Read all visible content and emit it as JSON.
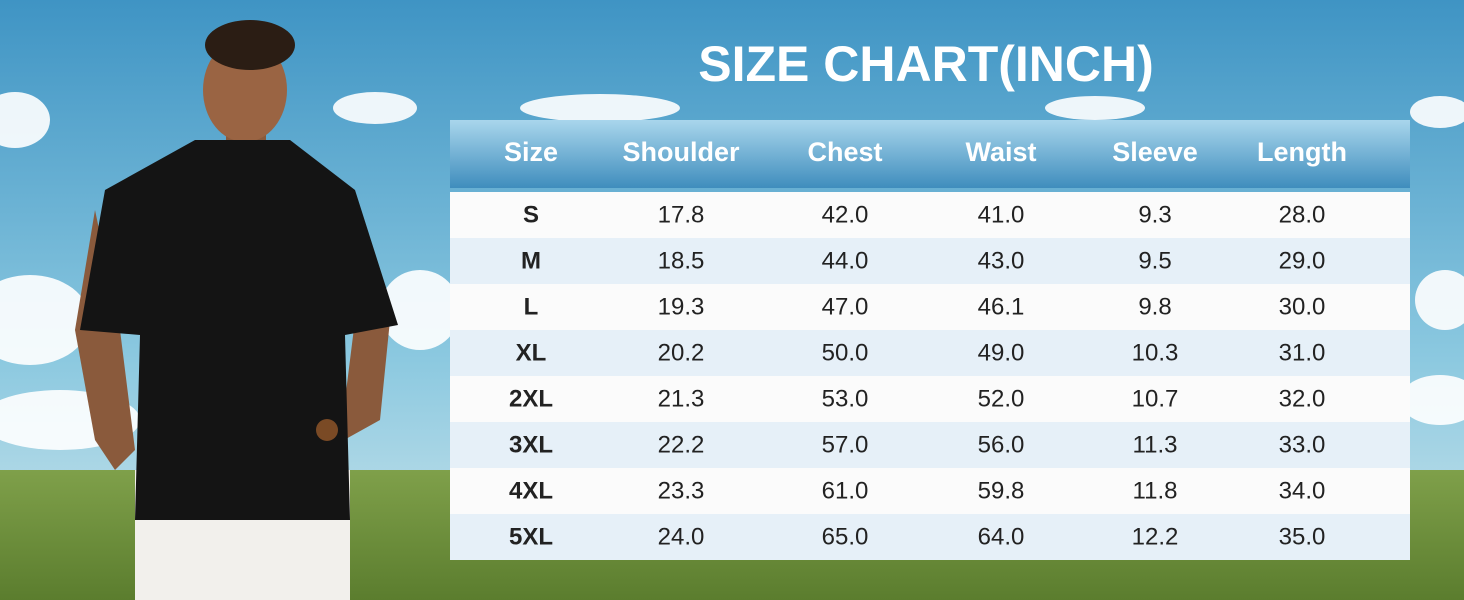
{
  "header": {
    "title": "SIZE CHART(INCH)"
  },
  "table": {
    "columns": [
      "Size",
      "Shoulder",
      "Chest",
      "Waist",
      "Sleeve",
      "Length"
    ],
    "rows": [
      [
        "S",
        "17.8",
        "42.0",
        "41.0",
        "9.3",
        "28.0"
      ],
      [
        "M",
        "18.5",
        "44.0",
        "43.0",
        "9.5",
        "29.0"
      ],
      [
        "L",
        "19.3",
        "47.0",
        "46.1",
        "9.8",
        "30.0"
      ],
      [
        "XL",
        "20.2",
        "50.0",
        "49.0",
        "10.3",
        "31.0"
      ],
      [
        "2XL",
        "21.3",
        "53.0",
        "52.0",
        "10.7",
        "32.0"
      ],
      [
        "3XL",
        "22.2",
        "57.0",
        "56.0",
        "11.3",
        "33.0"
      ],
      [
        "4XL",
        "23.3",
        "61.0",
        "59.8",
        "11.8",
        "34.0"
      ],
      [
        "5XL",
        "24.0",
        "65.0",
        "64.0",
        "12.2",
        "35.0"
      ]
    ]
  }
}
